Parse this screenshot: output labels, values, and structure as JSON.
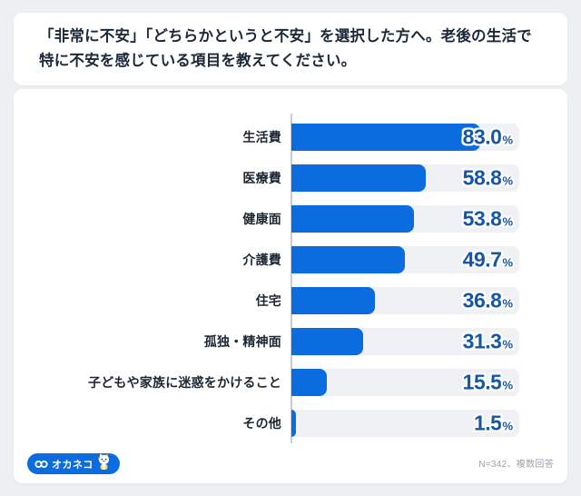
{
  "header": {
    "title": "「非常に不安」「どちらかというと不安」を選択した方へ。老後の生活で特に不安を感じている項目を教えてください。"
  },
  "chart_data": {
    "type": "bar",
    "orientation": "horizontal",
    "title": "「非常に不安」「どちらかというと不安」を選択した方へ。老後の生活で特に不安を感じている項目を教えてください。",
    "categories": [
      "生活費",
      "医療費",
      "健康面",
      "介護費",
      "住宅",
      "孤独・精神面",
      "子どもや家族に迷惑をかけること",
      "その他"
    ],
    "values": [
      83.0,
      58.8,
      53.8,
      49.7,
      36.8,
      31.3,
      15.5,
      1.5
    ],
    "value_labels": [
      "83.0",
      "58.8",
      "53.8",
      "49.7",
      "36.8",
      "31.3",
      "15.5",
      "1.5"
    ],
    "unit": "%",
    "xlim": [
      0,
      100
    ],
    "grid": false,
    "legend": false,
    "bar_color": "#0b6cdf",
    "track_color": "#eff1f4",
    "value_label_color": "#1557a6"
  },
  "footer": {
    "logo_text": "オカネコ",
    "note": "N=342、複数回答"
  }
}
